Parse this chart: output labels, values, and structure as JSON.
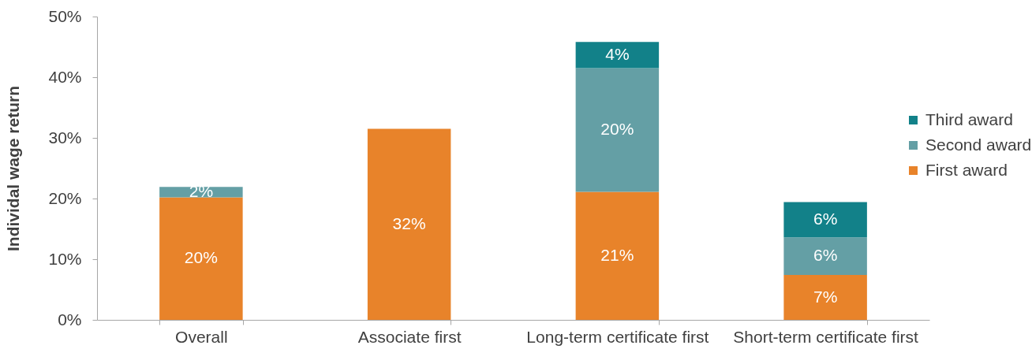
{
  "chart_data": {
    "type": "bar",
    "stacked": true,
    "ylabel": "Individal wage return",
    "categories": [
      "Overall",
      "Associate first",
      "Long-term certificate first",
      "Short-term certificate first"
    ],
    "series": [
      {
        "name": "First award",
        "color": "#e8832a",
        "values": [
          20.2,
          31.5,
          21.1,
          7.4
        ],
        "value_labels": [
          "20%",
          "32%",
          "21%",
          "7%"
        ]
      },
      {
        "name": "Second award",
        "color": "#649fa5",
        "values": [
          1.7,
          null,
          20.4,
          6.2
        ],
        "value_labels": [
          "2%",
          null,
          "20%",
          "6%"
        ]
      },
      {
        "name": "Third award",
        "color": "#128189",
        "values": [
          null,
          null,
          4.3,
          5.8
        ],
        "value_labels": [
          null,
          null,
          "4%",
          "6%"
        ]
      }
    ],
    "ylim": [
      0,
      50
    ],
    "yticks": [
      {
        "value": 0,
        "label": "0%"
      },
      {
        "value": 10,
        "label": "10%"
      },
      {
        "value": 20,
        "label": "20%"
      },
      {
        "value": 30,
        "label": "30%"
      },
      {
        "value": 40,
        "label": "40%"
      },
      {
        "value": 50,
        "label": "50%"
      }
    ],
    "grid": false,
    "legend": "right"
  }
}
